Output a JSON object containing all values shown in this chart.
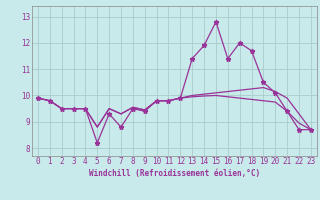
{
  "x": [
    0,
    1,
    2,
    3,
    4,
    5,
    6,
    7,
    8,
    9,
    10,
    11,
    12,
    13,
    14,
    15,
    16,
    17,
    18,
    19,
    20,
    21,
    22,
    23
  ],
  "line1": [
    9.9,
    9.8,
    9.5,
    9.5,
    9.5,
    8.2,
    9.3,
    8.8,
    9.5,
    9.4,
    9.8,
    9.8,
    9.9,
    11.4,
    11.9,
    12.8,
    11.4,
    12.0,
    11.7,
    10.5,
    10.1,
    9.4,
    8.7,
    8.7
  ],
  "line2": [
    9.9,
    9.8,
    9.5,
    9.5,
    9.5,
    8.8,
    9.5,
    9.3,
    9.55,
    9.45,
    9.8,
    9.8,
    9.9,
    10.0,
    10.05,
    10.1,
    10.15,
    10.2,
    10.25,
    10.3,
    10.15,
    9.9,
    9.3,
    8.7
  ],
  "line3": [
    9.9,
    9.8,
    9.5,
    9.5,
    9.5,
    8.8,
    9.5,
    9.3,
    9.55,
    9.45,
    9.8,
    9.8,
    9.9,
    9.95,
    9.98,
    10.0,
    9.95,
    9.9,
    9.85,
    9.8,
    9.75,
    9.4,
    8.95,
    8.7
  ],
  "background": "#c8eaea",
  "grid_color": "#aacccc",
  "line_color": "#993399",
  "xlabel": "Windchill (Refroidissement éolien,°C)",
  "ylabel_ticks": [
    8,
    9,
    10,
    11,
    12,
    13
  ],
  "xlim": [
    -0.5,
    23.5
  ],
  "ylim": [
    7.7,
    13.4
  ],
  "tick_fontsize": 5.5,
  "xlabel_fontsize": 5.5
}
